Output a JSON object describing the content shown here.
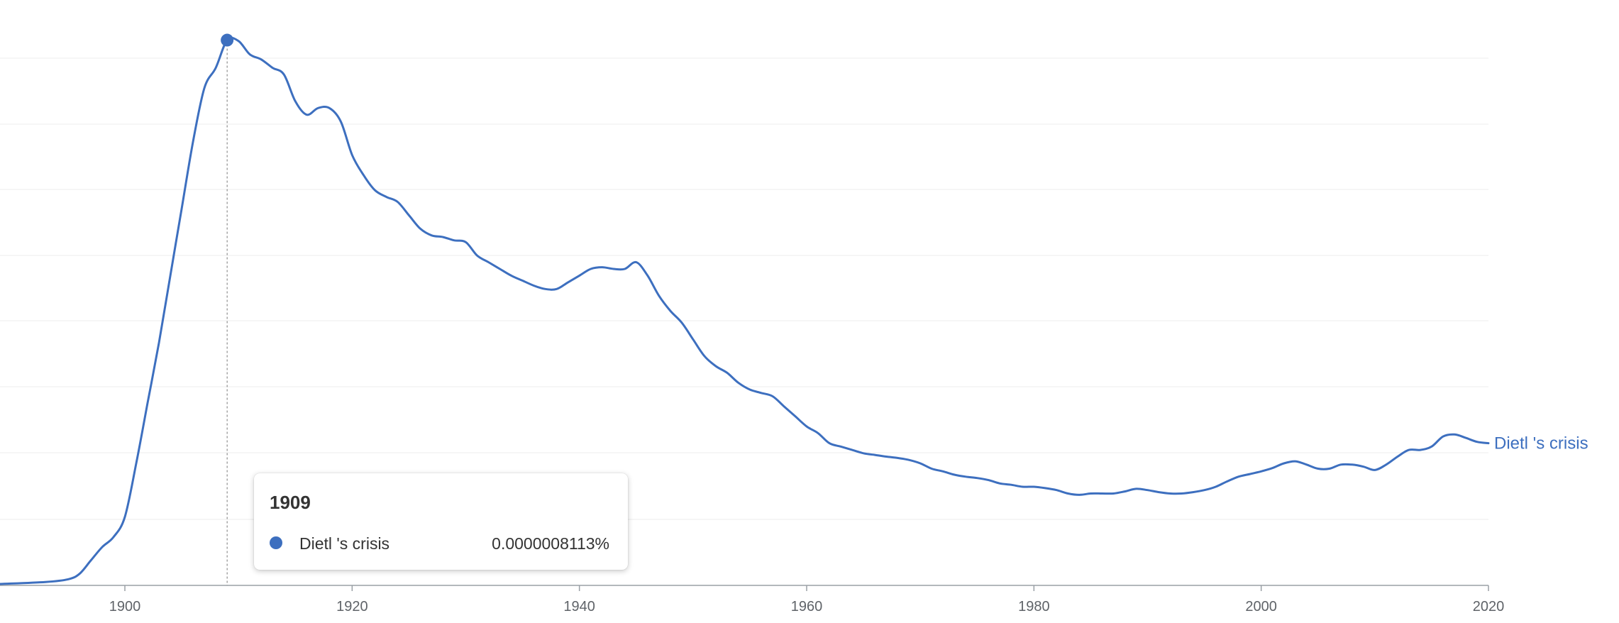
{
  "chart_data": {
    "type": "line",
    "title": "",
    "xlabel": "",
    "ylabel": "",
    "xlim": [
      1889,
      2020
    ],
    "ylim": [
      0,
      8.5e-07
    ],
    "x_ticks": [
      "1900",
      "1920",
      "1940",
      "1960",
      "1980",
      "2000",
      "2020"
    ],
    "grid": true,
    "color": "#3d6fbf",
    "series": [
      {
        "name": "Dietl 's crisis",
        "x": [
          1889,
          1893,
          1895,
          1896,
          1897,
          1898,
          1899,
          1900,
          1901,
          1902,
          1903,
          1904,
          1905,
          1906,
          1907,
          1908,
          1909,
          1910,
          1911,
          1912,
          1913,
          1914,
          1915,
          1916,
          1917,
          1918,
          1919,
          1920,
          1921,
          1922,
          1923,
          1924,
          1925,
          1926,
          1927,
          1928,
          1929,
          1930,
          1931,
          1932,
          1933,
          1934,
          1935,
          1936,
          1937,
          1938,
          1939,
          1940,
          1941,
          1942,
          1943,
          1944,
          1945,
          1946,
          1947,
          1948,
          1949,
          1950,
          1951,
          1952,
          1953,
          1954,
          1955,
          1956,
          1957,
          1958,
          1959,
          1960,
          1961,
          1962,
          1963,
          1964,
          1965,
          1966,
          1967,
          1968,
          1969,
          1970,
          1971,
          1972,
          1973,
          1974,
          1975,
          1976,
          1977,
          1978,
          1979,
          1980,
          1981,
          1982,
          1983,
          1984,
          1985,
          1986,
          1987,
          1988,
          1989,
          1990,
          1991,
          1992,
          1993,
          1994,
          1995,
          1996,
          1997,
          1998,
          1999,
          2000,
          2001,
          2002,
          2003,
          2004,
          2005,
          2006,
          2007,
          2008,
          2009,
          2010,
          2011,
          2012,
          2013,
          2014,
          2015,
          2016,
          2017,
          2018,
          2019,
          2020
        ],
        "values": [
          0,
          3e-09,
          7e-09,
          1.5e-08,
          3.5e-08,
          5.5e-08,
          7e-08,
          1e-07,
          1.8e-07,
          2.7e-07,
          3.6e-07,
          4.6e-07,
          5.6e-07,
          6.6e-07,
          7.4e-07,
          7.7e-07,
          8.113e-07,
          8.1e-07,
          7.9e-07,
          7.825e-07,
          7.7e-07,
          7.6e-07,
          7.2e-07,
          7e-07,
          7.1e-07,
          7.1e-07,
          6.9e-07,
          6.4e-07,
          6.1e-07,
          5.875e-07,
          5.775e-07,
          5.7e-07,
          5.5e-07,
          5.3e-07,
          5.2e-07,
          5.175e-07,
          5.125e-07,
          5.1e-07,
          4.9e-07,
          4.8e-07,
          4.7e-07,
          4.6e-07,
          4.525e-07,
          4.45e-07,
          4.4e-07,
          4.4e-07,
          4.5e-07,
          4.6e-07,
          4.7e-07,
          4.725e-07,
          4.7e-07,
          4.7e-07,
          4.8e-07,
          4.6e-07,
          4.3e-07,
          4.075e-07,
          3.9e-07,
          3.65e-07,
          3.4e-07,
          3.25e-07,
          3.15e-07,
          3e-07,
          2.9e-07,
          2.85e-07,
          2.8e-07,
          2.65e-07,
          2.5e-07,
          2.35e-07,
          2.25e-07,
          2.1e-07,
          2.05e-07,
          2e-07,
          1.95e-07,
          1.925e-07,
          1.9e-07,
          1.88e-07,
          1.85e-07,
          1.8e-07,
          1.72e-07,
          1.68e-07,
          1.63e-07,
          1.6e-07,
          1.58e-07,
          1.55e-07,
          1.5e-07,
          1.48e-07,
          1.45e-07,
          1.45e-07,
          1.43e-07,
          1.4e-07,
          1.35e-07,
          1.33e-07,
          1.35e-07,
          1.35e-07,
          1.35e-07,
          1.38e-07,
          1.42e-07,
          1.4e-07,
          1.37e-07,
          1.35e-07,
          1.35e-07,
          1.37e-07,
          1.4e-07,
          1.45e-07,
          1.53e-07,
          1.6e-07,
          1.64e-07,
          1.68e-07,
          1.73e-07,
          1.8e-07,
          1.83e-07,
          1.78e-07,
          1.72e-07,
          1.72e-07,
          1.78e-07,
          1.78e-07,
          1.75e-07,
          1.7e-07,
          1.78e-07,
          1.9e-07,
          2e-07,
          2e-07,
          2.05e-07,
          2.2e-07,
          2.23e-07,
          2.18e-07,
          2.12e-07,
          2.1e-07
        ]
      }
    ],
    "highlight": {
      "x": 1909,
      "label": "1909",
      "value_text": "0.0000008113%"
    }
  }
}
